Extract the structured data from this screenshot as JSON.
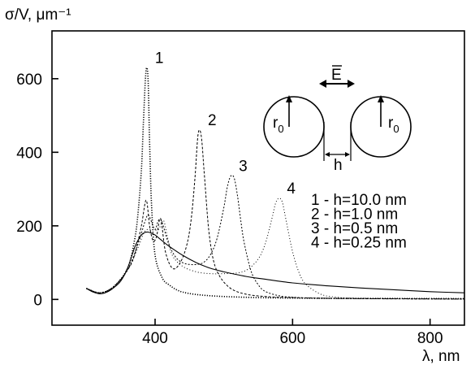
{
  "chart_data": {
    "type": "line",
    "xlabel": "λ, nm",
    "ylabel": "σ/V, μm⁻¹",
    "xlim": [
      250,
      850
    ],
    "ylim": [
      -70,
      730
    ],
    "x_ticks": [
      400,
      600,
      800
    ],
    "y_ticks": [
      0,
      200,
      400,
      600
    ],
    "grid": false,
    "legend_position": "right",
    "legend_entries": [
      "1 - h=10.0 nm",
      "2 - h=1.0 nm",
      "3 - h=0.5 nm",
      "4 - h=0.25 nm"
    ],
    "single_particle_curve": {
      "x": [
        300,
        310,
        320,
        330,
        340,
        350,
        360,
        370,
        375,
        380,
        385,
        390,
        395,
        400,
        410,
        420,
        440,
        460,
        480,
        500,
        520,
        540,
        560,
        600,
        650,
        700,
        750,
        800,
        850
      ],
      "values": [
        30,
        20,
        15,
        20,
        32,
        50,
        85,
        140,
        160,
        175,
        182,
        183,
        180,
        175,
        160,
        145,
        120,
        100,
        85,
        75,
        67,
        60,
        55,
        45,
        37,
        31,
        26,
        21,
        18
      ]
    },
    "series": [
      {
        "name": "1",
        "peak_label": "1",
        "x": [
          300,
          320,
          340,
          360,
          370,
          375,
          380,
          383,
          386,
          388,
          390,
          392,
          395,
          400,
          410,
          420,
          440,
          480,
          550,
          650,
          850
        ],
        "values": [
          30,
          18,
          35,
          85,
          160,
          230,
          350,
          480,
          600,
          630,
          590,
          430,
          250,
          120,
          60,
          40,
          20,
          10,
          5,
          3,
          2
        ]
      },
      {
        "name": "2",
        "peak_label": "2",
        "x": [
          300,
          320,
          340,
          360,
          370,
          380,
          387,
          392,
          397,
          402,
          408,
          415,
          425,
          435,
          445,
          452,
          458,
          462,
          465,
          468,
          472,
          478,
          485,
          495,
          510,
          530,
          560,
          600,
          700,
          850
        ],
        "values": [
          30,
          18,
          35,
          80,
          120,
          200,
          270,
          200,
          160,
          170,
          220,
          130,
          85,
          95,
          140,
          210,
          330,
          440,
          460,
          430,
          330,
          190,
          105,
          60,
          30,
          15,
          8,
          5,
          2,
          1
        ]
      },
      {
        "name": "3",
        "peak_label": "3",
        "x": [
          300,
          320,
          340,
          360,
          375,
          385,
          390,
          395,
          400,
          405,
          410,
          420,
          430,
          440,
          450,
          460,
          470,
          480,
          490,
          500,
          505,
          510,
          515,
          520,
          525,
          530,
          540,
          550,
          560,
          580,
          600,
          650,
          850
        ],
        "values": [
          30,
          18,
          35,
          80,
          150,
          210,
          230,
          210,
          190,
          215,
          210,
          150,
          115,
          100,
          95,
          95,
          100,
          120,
          165,
          250,
          305,
          335,
          330,
          280,
          210,
          150,
          75,
          40,
          22,
          10,
          6,
          3,
          1
        ]
      },
      {
        "name": "4",
        "peak_label": "4",
        "x": [
          300,
          320,
          340,
          360,
          375,
          385,
          395,
          405,
          412,
          418,
          425,
          440,
          460,
          480,
          500,
          520,
          535,
          550,
          560,
          570,
          575,
          580,
          585,
          590,
          600,
          610,
          620,
          640,
          660,
          700,
          850
        ],
        "values": [
          30,
          18,
          35,
          80,
          140,
          185,
          190,
          190,
          215,
          170,
          120,
          90,
          75,
          70,
          70,
          72,
          82,
          110,
          150,
          220,
          260,
          275,
          265,
          220,
          130,
          70,
          40,
          15,
          7,
          3,
          1
        ]
      }
    ]
  },
  "diagram": {
    "field_label": "E",
    "radius_label_left": "r",
    "radius_sub_left": "0",
    "radius_label_right": "r",
    "radius_sub_right": "0",
    "gap_label": "h"
  }
}
